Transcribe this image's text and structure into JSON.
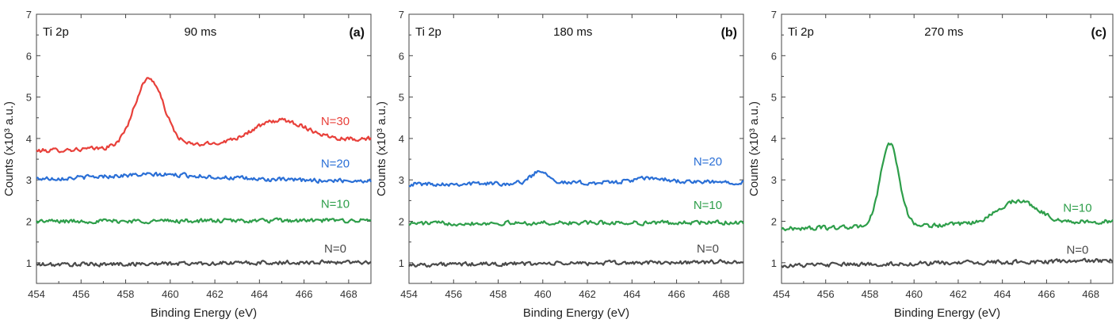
{
  "chart_data": [
    {
      "type": "line",
      "panel_label": "(a)",
      "corner_label": "Ti 2p",
      "condition": "90 ms",
      "xlabel": "Binding Energy (eV)",
      "ylabel": "Counts (x10³ a.u.)",
      "xlim": [
        454,
        469
      ],
      "ylim": [
        0.5,
        7
      ],
      "x_ticks": [
        "454",
        "456",
        "458",
        "460",
        "462",
        "464",
        "466",
        "468"
      ],
      "y_ticks": [
        "1",
        "2",
        "3",
        "4",
        "5",
        "6",
        "7"
      ],
      "series": [
        {
          "name": "N=30",
          "color": "#e8403a",
          "baseline": 3.7,
          "end": 4.0,
          "peaks": [
            {
              "center": 459.05,
              "height": 1.65,
              "width": 0.65
            },
            {
              "center": 464.9,
              "height": 0.52,
              "width": 1.2
            }
          ],
          "label_x": 467.4,
          "label_y": 4.32
        },
        {
          "name": "N=20",
          "color": "#2a6fd6",
          "baseline": 3.02,
          "end": 2.98,
          "peaks": [
            {
              "center": 459.5,
              "height": 0.12,
              "width": 2.5
            }
          ],
          "label_x": 467.4,
          "label_y": 3.3
        },
        {
          "name": "N=10",
          "color": "#2e9e4a",
          "baseline": 2.0,
          "end": 2.02,
          "peaks": [],
          "label_x": 467.4,
          "label_y": 2.33
        },
        {
          "name": "N=0",
          "color": "#4a4a4a",
          "baseline": 0.95,
          "end": 1.02,
          "peaks": [],
          "label_x": 467.4,
          "label_y": 1.25
        }
      ]
    },
    {
      "type": "line",
      "panel_label": "(b)",
      "corner_label": "Ti 2p",
      "condition": "180 ms",
      "xlabel": "Binding Energy (eV)",
      "ylabel": "Counts (x10³ a.u.)",
      "xlim": [
        454,
        469
      ],
      "ylim": [
        0.5,
        7
      ],
      "x_ticks": [
        "454",
        "456",
        "458",
        "460",
        "462",
        "464",
        "466",
        "468"
      ],
      "y_ticks": [
        "1",
        "2",
        "3",
        "4",
        "5",
        "6",
        "7"
      ],
      "series": [
        {
          "name": "N=20",
          "color": "#2a6fd6",
          "baseline": 2.9,
          "end": 2.95,
          "peaks": [
            {
              "center": 459.9,
              "height": 0.3,
              "width": 0.4
            },
            {
              "center": 464.8,
              "height": 0.1,
              "width": 0.8
            }
          ],
          "label_x": 467.4,
          "label_y": 3.35
        },
        {
          "name": "N=10",
          "color": "#2e9e4a",
          "baseline": 1.95,
          "end": 1.97,
          "peaks": [],
          "label_x": 467.4,
          "label_y": 2.3
        },
        {
          "name": "N=0",
          "color": "#4a4a4a",
          "baseline": 0.95,
          "end": 1.02,
          "peaks": [],
          "label_x": 467.4,
          "label_y": 1.25
        }
      ]
    },
    {
      "type": "line",
      "panel_label": "(c)",
      "corner_label": "Ti 2p",
      "condition": "270 ms",
      "xlabel": "Binding Energy (eV)",
      "ylabel": "Counts (x10³ a.u.)",
      "xlim": [
        454,
        469
      ],
      "ylim": [
        0.5,
        7
      ],
      "x_ticks": [
        "454",
        "456",
        "458",
        "460",
        "462",
        "464",
        "466",
        "468"
      ],
      "y_ticks": [
        "1",
        "2",
        "3",
        "4",
        "5",
        "6",
        "7"
      ],
      "series": [
        {
          "name": "N=10",
          "color": "#2e9e4a",
          "baseline": 1.82,
          "end": 2.0,
          "peaks": [
            {
              "center": 458.9,
              "height": 2.0,
              "width": 0.42
            },
            {
              "center": 464.7,
              "height": 0.55,
              "width": 0.9
            }
          ],
          "label_x": 467.4,
          "label_y": 2.23
        },
        {
          "name": "N=0",
          "color": "#4a4a4a",
          "baseline": 0.93,
          "end": 1.05,
          "peaks": [],
          "label_x": 467.4,
          "label_y": 1.22
        }
      ]
    }
  ]
}
